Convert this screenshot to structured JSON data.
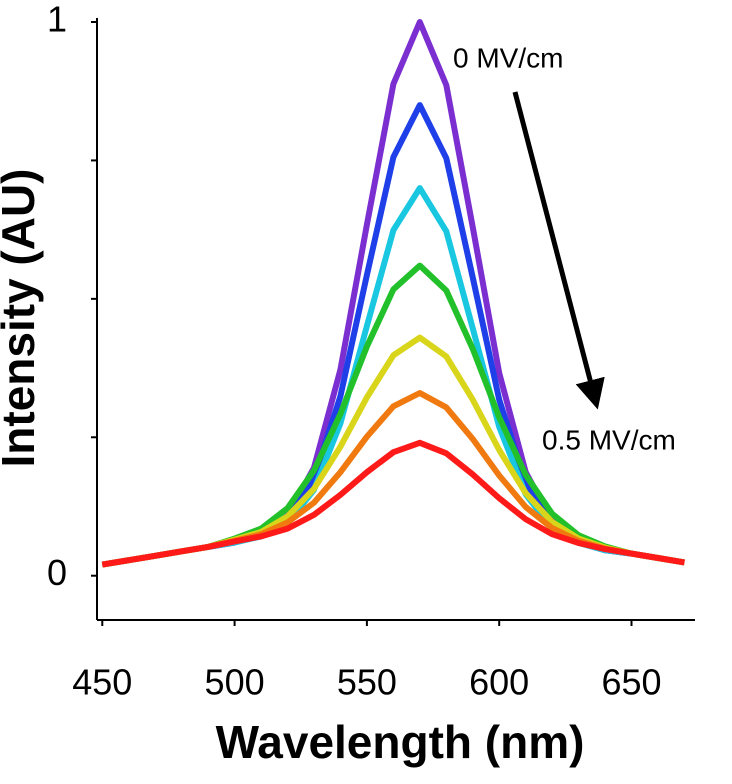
{
  "chart_data": {
    "type": "line",
    "x": [
      450,
      460,
      470,
      480,
      490,
      500,
      510,
      520,
      530,
      540,
      550,
      560,
      570,
      580,
      590,
      600,
      610,
      620,
      630,
      640,
      650,
      660,
      670
    ],
    "series": [
      {
        "color": "#7b2fd0",
        "values": [
          0.02,
          0.028,
          0.036,
          0.044,
          0.052,
          0.06,
          0.074,
          0.108,
          0.195,
          0.372,
          0.634,
          0.888,
          1.0,
          0.886,
          0.63,
          0.366,
          0.187,
          0.098,
          0.062,
          0.046,
          0.04,
          0.032,
          0.024
        ]
      },
      {
        "color": "#1f3fe8",
        "values": [
          0.02,
          0.028,
          0.036,
          0.044,
          0.052,
          0.06,
          0.072,
          0.102,
          0.175,
          0.324,
          0.543,
          0.756,
          0.85,
          0.754,
          0.539,
          0.318,
          0.167,
          0.092,
          0.06,
          0.046,
          0.04,
          0.032,
          0.024
        ]
      },
      {
        "color": "#19c7e0",
        "values": [
          0.02,
          0.028,
          0.036,
          0.044,
          0.052,
          0.06,
          0.071,
          0.095,
          0.155,
          0.275,
          0.451,
          0.624,
          0.7,
          0.622,
          0.447,
          0.269,
          0.147,
          0.085,
          0.059,
          0.046,
          0.04,
          0.032,
          0.024
        ]
      },
      {
        "color": "#22c02a",
        "values": [
          0.02,
          0.028,
          0.036,
          0.044,
          0.052,
          0.067,
          0.085,
          0.122,
          0.19,
          0.292,
          0.414,
          0.517,
          0.56,
          0.515,
          0.41,
          0.286,
          0.182,
          0.112,
          0.073,
          0.053,
          0.04,
          0.032,
          0.024
        ]
      },
      {
        "color": "#d8d51a",
        "values": [
          0.02,
          0.028,
          0.036,
          0.044,
          0.052,
          0.065,
          0.079,
          0.107,
          0.157,
          0.233,
          0.322,
          0.398,
          0.43,
          0.396,
          0.318,
          0.227,
          0.149,
          0.097,
          0.067,
          0.051,
          0.04,
          0.032,
          0.024
        ]
      },
      {
        "color": "#f07a10",
        "values": [
          0.02,
          0.028,
          0.036,
          0.044,
          0.052,
          0.063,
          0.075,
          0.096,
          0.132,
          0.187,
          0.251,
          0.306,
          0.33,
          0.304,
          0.247,
          0.181,
          0.124,
          0.086,
          0.063,
          0.049,
          0.04,
          0.032,
          0.024
        ]
      },
      {
        "color": "#ff1a1a",
        "values": [
          0.02,
          0.028,
          0.036,
          0.044,
          0.052,
          0.062,
          0.071,
          0.085,
          0.11,
          0.146,
          0.187,
          0.223,
          0.24,
          0.221,
          0.183,
          0.14,
          0.102,
          0.075,
          0.059,
          0.048,
          0.04,
          0.032,
          0.024
        ]
      }
    ],
    "x_label": "Wavelength (nm)",
    "y_label": "Intensity (AU)",
    "xlim": [
      448,
      674
    ],
    "xticks": [
      450,
      500,
      550,
      600,
      650
    ],
    "ylim": [
      -0.08,
      1.0
    ],
    "yticks": [
      0,
      {
        "value": 0.25,
        "label": null
      },
      {
        "value": 0.5,
        "label": null
      },
      {
        "value": 0.75,
        "label": null
      },
      1
    ],
    "annotations": [
      "0 MV/cm",
      "0.5 MV/cm"
    ]
  }
}
